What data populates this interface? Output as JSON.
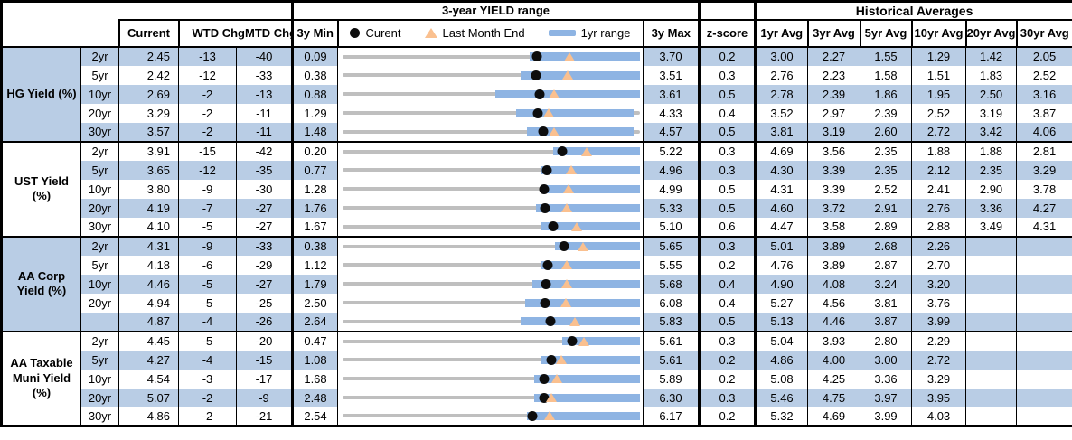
{
  "header": {
    "group_yield_range": "3-year YIELD range",
    "group_historical": "Historical Averages",
    "col_current": "Current",
    "col_wtd": "WTD Chg",
    "col_mtd": "MTD Chg",
    "col_3y_min": "3y Min",
    "col_3y_max": "3y Max",
    "col_zscore": "z-score",
    "avg_cols": [
      "1yr Avg",
      "3yr Avg",
      "5yr Avg",
      "10yr Avg",
      "20yr Avg",
      "30yr Avg"
    ],
    "legend": {
      "current": "Curent",
      "last_month": "Last Month End",
      "range": "1yr range"
    }
  },
  "colors": {
    "stripe": "#B9CDE5",
    "bar": "#8EB4E3",
    "track": "#BFBFBF",
    "triangle": "#FAC08F",
    "dot": "#0D0D0D",
    "border": "#000000"
  },
  "chart_data": {
    "type": "table",
    "title": "3-year YIELD range",
    "embedded_chart_type": "bullet-range (gray = 3y range, blue bar = 1yr range, dot = current, triangle = last month end)",
    "marker_positions_note": "bar_lo/bar_hi/dot/tri are percent positions across the 3y min-max track",
    "sections": [
      {
        "label": "HG Yield (%)",
        "rows": [
          {
            "tenor": "2yr",
            "current": "2.45",
            "wtd": "-13",
            "mtd": "-40",
            "min3y": "0.09",
            "max3y": "3.70",
            "z": "0.2",
            "avgs": [
              "3.00",
              "2.27",
              "1.55",
              "1.29",
              "1.42",
              "2.05"
            ],
            "chart": {
              "bar_lo": 63,
              "bar_hi": 100,
              "dot": 65.4,
              "tri": 76.5
            }
          },
          {
            "tenor": "5yr",
            "current": "2.42",
            "wtd": "-12",
            "mtd": "-33",
            "min3y": "0.38",
            "max3y": "3.51",
            "z": "0.3",
            "avgs": [
              "2.76",
              "2.23",
              "1.58",
              "1.51",
              "1.83",
              "2.52"
            ],
            "chart": {
              "bar_lo": 60,
              "bar_hi": 100,
              "dot": 65.2,
              "tri": 75.7
            }
          },
          {
            "tenor": "10yr",
            "current": "2.69",
            "wtd": "-2",
            "mtd": "-13",
            "min3y": "0.88",
            "max3y": "3.61",
            "z": "0.5",
            "avgs": [
              "2.78",
              "2.39",
              "1.86",
              "1.95",
              "2.50",
              "3.16"
            ],
            "chart": {
              "bar_lo": 51.5,
              "bar_hi": 100,
              "dot": 66.3,
              "tri": 71.1
            }
          },
          {
            "tenor": "20yr",
            "current": "3.29",
            "wtd": "-2",
            "mtd": "-11",
            "min3y": "1.29",
            "max3y": "4.33",
            "z": "0.4",
            "avgs": [
              "3.52",
              "2.97",
              "2.39",
              "2.52",
              "3.19",
              "3.87"
            ],
            "chart": {
              "bar_lo": 58.5,
              "bar_hi": 98,
              "dot": 65.8,
              "tri": 69.4
            }
          },
          {
            "tenor": "30yr",
            "current": "3.57",
            "wtd": "-2",
            "mtd": "-11",
            "min3y": "1.48",
            "max3y": "4.57",
            "z": "0.5",
            "avgs": [
              "3.81",
              "3.19",
              "2.60",
              "2.72",
              "3.42",
              "4.06"
            ],
            "chart": {
              "bar_lo": 62,
              "bar_hi": 98,
              "dot": 67.6,
              "tri": 71.2
            }
          }
        ]
      },
      {
        "label": "UST Yield (%)",
        "rows": [
          {
            "tenor": "2yr",
            "current": "3.91",
            "wtd": "-15",
            "mtd": "-42",
            "min3y": "0.20",
            "max3y": "5.22",
            "z": "0.3",
            "avgs": [
              "4.69",
              "3.56",
              "2.35",
              "1.88",
              "1.88",
              "2.81"
            ],
            "chart": {
              "bar_lo": 71,
              "bar_hi": 100,
              "dot": 73.9,
              "tri": 82.3
            }
          },
          {
            "tenor": "5yr",
            "current": "3.65",
            "wtd": "-12",
            "mtd": "-35",
            "min3y": "0.77",
            "max3y": "4.96",
            "z": "0.3",
            "avgs": [
              "4.30",
              "3.39",
              "2.35",
              "2.12",
              "2.35",
              "3.29"
            ],
            "chart": {
              "bar_lo": 67,
              "bar_hi": 100,
              "dot": 68.7,
              "tri": 77.1
            }
          },
          {
            "tenor": "10yr",
            "current": "3.80",
            "wtd": "-9",
            "mtd": "-30",
            "min3y": "1.28",
            "max3y": "4.99",
            "z": "0.5",
            "avgs": [
              "4.31",
              "3.39",
              "2.52",
              "2.41",
              "2.90",
              "3.78"
            ],
            "chart": {
              "bar_lo": 66.5,
              "bar_hi": 100,
              "dot": 67.9,
              "tri": 76.0
            }
          },
          {
            "tenor": "20yr",
            "current": "4.19",
            "wtd": "-7",
            "mtd": "-27",
            "min3y": "1.76",
            "max3y": "5.33",
            "z": "0.5",
            "avgs": [
              "4.60",
              "3.72",
              "2.91",
              "2.76",
              "3.36",
              "4.27"
            ],
            "chart": {
              "bar_lo": 65,
              "bar_hi": 100,
              "dot": 68.1,
              "tri": 75.6
            }
          },
          {
            "tenor": "30yr",
            "current": "4.10",
            "wtd": "-5",
            "mtd": "-27",
            "min3y": "1.67",
            "max3y": "5.10",
            "z": "0.6",
            "avgs": [
              "4.47",
              "3.58",
              "2.89",
              "2.88",
              "3.49",
              "4.31"
            ],
            "chart": {
              "bar_lo": 66.5,
              "bar_hi": 100,
              "dot": 70.8,
              "tri": 78.7
            }
          }
        ]
      },
      {
        "label": "AA Corp Yield (%)",
        "rows": [
          {
            "tenor": "2yr",
            "current": "4.31",
            "wtd": "-9",
            "mtd": "-33",
            "min3y": "0.38",
            "max3y": "5.65",
            "z": "0.3",
            "avgs": [
              "5.01",
              "3.89",
              "2.68",
              "2.26",
              "",
              ""
            ],
            "chart": {
              "bar_lo": 71.5,
              "bar_hi": 100,
              "dot": 74.6,
              "tri": 80.8
            }
          },
          {
            "tenor": "5yr",
            "current": "4.18",
            "wtd": "-6",
            "mtd": "-29",
            "min3y": "1.12",
            "max3y": "5.55",
            "z": "0.2",
            "avgs": [
              "4.76",
              "3.89",
              "2.87",
              "2.70",
              "",
              ""
            ],
            "chart": {
              "bar_lo": 66.5,
              "bar_hi": 100,
              "dot": 69.1,
              "tri": 75.6
            }
          },
          {
            "tenor": "10yr",
            "current": "4.46",
            "wtd": "-5",
            "mtd": "-27",
            "min3y": "1.79",
            "max3y": "5.68",
            "z": "0.4",
            "avgs": [
              "4.90",
              "4.08",
              "3.24",
              "3.20",
              "",
              ""
            ],
            "chart": {
              "bar_lo": 64,
              "bar_hi": 100,
              "dot": 68.6,
              "tri": 75.6
            }
          },
          {
            "tenor": "20yr",
            "current": "4.94",
            "wtd": "-5",
            "mtd": "-25",
            "min3y": "2.50",
            "max3y": "6.08",
            "z": "0.4",
            "avgs": [
              "5.27",
              "4.56",
              "3.81",
              "3.76",
              "",
              ""
            ],
            "chart": {
              "bar_lo": 61.5,
              "bar_hi": 100,
              "dot": 68.2,
              "tri": 75.1
            }
          },
          {
            "tenor": "",
            "current": "4.87",
            "wtd": "-4",
            "mtd": "-26",
            "min3y": "2.64",
            "max3y": "5.83",
            "z": "0.5",
            "avgs": [
              "5.13",
              "4.46",
              "3.87",
              "3.99",
              "",
              ""
            ],
            "chart": {
              "bar_lo": 60,
              "bar_hi": 100,
              "dot": 69.9,
              "tri": 78.1
            }
          }
        ]
      },
      {
        "label": "AA Taxable Muni Yield (%)",
        "rows": [
          {
            "tenor": "2yr",
            "current": "4.45",
            "wtd": "-5",
            "mtd": "-20",
            "min3y": "0.47",
            "max3y": "5.61",
            "z": "0.3",
            "avgs": [
              "5.04",
              "3.93",
              "2.80",
              "2.29",
              "",
              ""
            ],
            "chart": {
              "bar_lo": 74,
              "bar_hi": 100,
              "dot": 77.4,
              "tri": 81.3
            }
          },
          {
            "tenor": "5yr",
            "current": "4.27",
            "wtd": "-4",
            "mtd": "-15",
            "min3y": "1.08",
            "max3y": "5.61",
            "z": "0.2",
            "avgs": [
              "4.86",
              "4.00",
              "3.00",
              "2.72",
              "",
              ""
            ],
            "chart": {
              "bar_lo": 67,
              "bar_hi": 100,
              "dot": 70.4,
              "tri": 73.7
            }
          },
          {
            "tenor": "10yr",
            "current": "4.54",
            "wtd": "-3",
            "mtd": "-17",
            "min3y": "1.68",
            "max3y": "5.89",
            "z": "0.2",
            "avgs": [
              "5.08",
              "4.25",
              "3.36",
              "3.29",
              "",
              ""
            ],
            "chart": {
              "bar_lo": 64.5,
              "bar_hi": 100,
              "dot": 67.9,
              "tri": 72.0
            }
          },
          {
            "tenor": "20yr",
            "current": "5.07",
            "wtd": "-2",
            "mtd": "-9",
            "min3y": "2.48",
            "max3y": "6.30",
            "z": "0.3",
            "avgs": [
              "5.46",
              "4.75",
              "3.97",
              "3.95",
              "",
              ""
            ],
            "chart": {
              "bar_lo": 64.5,
              "bar_hi": 100,
              "dot": 67.8,
              "tri": 70.2
            }
          },
          {
            "tenor": "30yr",
            "current": "4.86",
            "wtd": "-2",
            "mtd": "-21",
            "min3y": "2.54",
            "max3y": "6.17",
            "z": "0.2",
            "avgs": [
              "5.32",
              "4.69",
              "3.99",
              "4.03",
              "",
              ""
            ],
            "chart": {
              "bar_lo": 62,
              "bar_hi": 100,
              "dot": 63.9,
              "tri": 69.7
            }
          }
        ]
      }
    ]
  }
}
